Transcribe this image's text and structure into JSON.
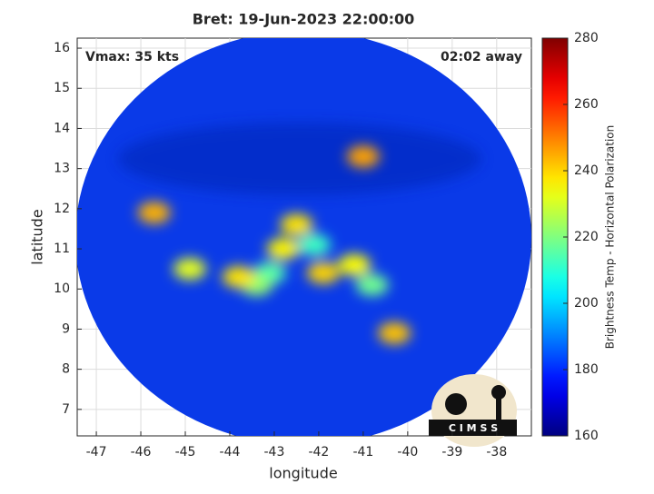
{
  "chart_data": {
    "type": "image",
    "title": "Bret: 19-Jun-2023 22:00:00",
    "x_label": "longitude",
    "y_label": "latitude",
    "annotations": [
      "Vmax: 35 kts",
      "02:02 away"
    ],
    "logo_text": "C I M S S",
    "xlim": [
      -47.43,
      -37.22
    ],
    "xticks": [
      -47,
      -46,
      -45,
      -44,
      -43,
      -42,
      -41,
      -40,
      -39,
      -38
    ],
    "ylim": [
      6.34,
      16.25
    ],
    "yticks": [
      7,
      8,
      9,
      10,
      11,
      12,
      13,
      14,
      15,
      16
    ],
    "grid": true,
    "colorbar": {
      "label": "Brightness Temp - Horizontal Polarization",
      "clim": [
        160,
        280
      ],
      "ticks": [
        160,
        180,
        200,
        220,
        240,
        260,
        280
      ],
      "colormap": "jet"
    },
    "points": {
      "x": [
        -42.1,
        -43.1,
        -43.4,
        -40.8,
        -44.9,
        -41.2,
        -42.5,
        -41.9,
        -40.3,
        -45.7,
        -41.0,
        -42.8,
        -43.8
      ],
      "y": [
        11.1,
        10.4,
        10.1,
        10.1,
        10.5,
        10.6,
        11.6,
        10.4,
        8.9,
        11.9,
        13.3,
        11.0,
        10.3
      ],
      "values": [
        212,
        215,
        222,
        218,
        232,
        235,
        238,
        240,
        242,
        244,
        246,
        236,
        238
      ]
    }
  }
}
